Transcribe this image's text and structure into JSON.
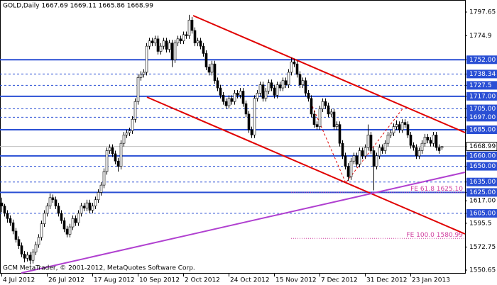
{
  "chart_data": {
    "type": "candlestick",
    "title": "GOLD,Daily  1667.69 1669.11 1665.86 1668.99",
    "footer": "GCM MetaTrader, © 2001-2012, MetaQuotes Software Corp.",
    "ylim": [
      1550.65,
      1797.65
    ],
    "yticks": [
      1797.65,
      1774.9,
      {
        "value": 1752,
        "label": "1752.00"
      },
      1738.34,
      1727.5,
      {
        "value": 1717,
        "label": "1717.00"
      },
      {
        "value": 1705,
        "label": "1705.00"
      },
      {
        "value": 1697,
        "label": "1697.00"
      },
      {
        "value": 1685,
        "label": "1685.00"
      },
      1668.99,
      {
        "value": 1660,
        "label": "1660.00"
      },
      {
        "value": 1650,
        "label": "1650.00"
      },
      {
        "value": 1635,
        "label": "1635.00"
      },
      {
        "value": 1625,
        "label": "1625.00"
      },
      {
        "value": 1617,
        "label": "1617.00"
      },
      {
        "value": 1605,
        "label": "1605.00"
      },
      1595.5,
      1572.75,
      1550.65
    ],
    "hlines_solid": [
      1752,
      1717,
      1685,
      1660,
      1625
    ],
    "hlines_dashed": [
      1738.34,
      1727.5,
      1705,
      1697,
      1650,
      1635,
      1605
    ],
    "bid": 1668.99,
    "level_color": "#2a4fd4",
    "annotations": [
      {
        "label": "FE 61.8 1625.10",
        "value": 1625.1
      },
      {
        "label": "FE 100.0 1580.99",
        "value": 1580.99
      }
    ],
    "xticks": [
      {
        "value": 0,
        "label": "4 Jul 2012"
      },
      {
        "value": 16,
        "label": "26 Jul 2012"
      },
      {
        "value": 32,
        "label": "17 Aug 2012"
      },
      {
        "value": 48,
        "label": "10 Sep 2012"
      },
      {
        "value": 64,
        "label": "2 Oct 2012"
      },
      {
        "value": 80,
        "label": "24 Oct 2012"
      },
      {
        "value": 96,
        "label": "15 Nov 2012"
      },
      {
        "value": 112,
        "label": "7 Dec 2012"
      },
      {
        "value": 128,
        "label": "31 Dec 2012"
      },
      {
        "value": 144,
        "label": "23 Jan 2013"
      }
    ],
    "candles": [
      [
        1615,
        1620,
        1606,
        1612
      ],
      [
        1612,
        1614,
        1602,
        1605
      ],
      [
        1605,
        1608,
        1596,
        1600
      ],
      [
        1600,
        1603,
        1593,
        1596
      ],
      [
        1596,
        1599,
        1585,
        1588
      ],
      [
        1588,
        1591,
        1577,
        1580
      ],
      [
        1580,
        1583,
        1571,
        1574
      ],
      [
        1574,
        1577,
        1563,
        1566
      ],
      [
        1566,
        1569,
        1558,
        1562
      ],
      [
        1562,
        1568,
        1559,
        1565
      ],
      [
        1565,
        1568,
        1556,
        1560
      ],
      [
        1560,
        1571,
        1557,
        1568
      ],
      [
        1568,
        1578,
        1565,
        1575
      ],
      [
        1575,
        1585,
        1572,
        1582
      ],
      [
        1582,
        1598,
        1579,
        1595
      ],
      [
        1595,
        1608,
        1592,
        1605
      ],
      [
        1605,
        1615,
        1602,
        1612
      ],
      [
        1612,
        1624,
        1609,
        1620
      ],
      [
        1620,
        1623,
        1615,
        1618
      ],
      [
        1618,
        1621,
        1609,
        1612
      ],
      [
        1612,
        1615,
        1602,
        1605
      ],
      [
        1605,
        1608,
        1595,
        1598
      ],
      [
        1598,
        1601,
        1587,
        1590
      ],
      [
        1590,
        1593,
        1582,
        1585
      ],
      [
        1585,
        1595,
        1582,
        1592
      ],
      [
        1592,
        1603,
        1589,
        1600
      ],
      [
        1600,
        1603,
        1593,
        1596
      ],
      [
        1596,
        1608,
        1593,
        1605
      ],
      [
        1605,
        1615,
        1602,
        1612
      ],
      [
        1612,
        1615,
        1607,
        1610
      ],
      [
        1610,
        1618,
        1607,
        1615
      ],
      [
        1615,
        1618,
        1605,
        1608
      ],
      [
        1608,
        1615,
        1605,
        1612
      ],
      [
        1612,
        1621,
        1609,
        1618
      ],
      [
        1618,
        1628,
        1615,
        1625
      ],
      [
        1625,
        1635,
        1622,
        1632
      ],
      [
        1632,
        1648,
        1629,
        1645
      ],
      [
        1645,
        1668,
        1642,
        1665
      ],
      [
        1665,
        1671,
        1662,
        1668
      ],
      [
        1668,
        1671,
        1659,
        1662
      ],
      [
        1662,
        1665,
        1652,
        1655
      ],
      [
        1655,
        1658,
        1645,
        1650
      ],
      [
        1650,
        1675,
        1647,
        1672
      ],
      [
        1672,
        1683,
        1669,
        1680
      ],
      [
        1680,
        1685,
        1677,
        1682
      ],
      [
        1682,
        1687,
        1679,
        1684
      ],
      [
        1684,
        1698,
        1681,
        1695
      ],
      [
        1695,
        1715,
        1692,
        1712
      ],
      [
        1712,
        1738,
        1709,
        1735
      ],
      [
        1735,
        1741,
        1732,
        1738
      ],
      [
        1738,
        1743,
        1735,
        1740
      ],
      [
        1740,
        1768,
        1737,
        1765
      ],
      [
        1765,
        1773,
        1762,
        1770
      ],
      [
        1770,
        1773,
        1765,
        1768
      ],
      [
        1768,
        1775,
        1765,
        1772
      ],
      [
        1772,
        1775,
        1757,
        1760
      ],
      [
        1760,
        1768,
        1757,
        1765
      ],
      [
        1765,
        1773,
        1762,
        1770
      ],
      [
        1770,
        1773,
        1759,
        1762
      ],
      [
        1762,
        1771,
        1759,
        1768
      ],
      [
        1768,
        1771,
        1745,
        1752
      ],
      [
        1752,
        1771,
        1749,
        1768
      ],
      [
        1768,
        1775,
        1765,
        1772
      ],
      [
        1772,
        1775,
        1767,
        1770
      ],
      [
        1770,
        1779,
        1767,
        1776
      ],
      [
        1776,
        1779,
        1772,
        1775
      ],
      [
        1775,
        1795,
        1772,
        1790
      ],
      [
        1790,
        1793,
        1777,
        1780
      ],
      [
        1780,
        1783,
        1765,
        1768
      ],
      [
        1768,
        1773,
        1765,
        1770
      ],
      [
        1770,
        1773,
        1762,
        1765
      ],
      [
        1765,
        1768,
        1755,
        1758
      ],
      [
        1758,
        1761,
        1742,
        1745
      ],
      [
        1745,
        1748,
        1737,
        1740
      ],
      [
        1740,
        1751,
        1737,
        1748
      ],
      [
        1748,
        1751,
        1729,
        1732
      ],
      [
        1732,
        1735,
        1722,
        1725
      ],
      [
        1725,
        1728,
        1715,
        1718
      ],
      [
        1718,
        1721,
        1709,
        1712
      ],
      [
        1712,
        1715,
        1705,
        1708
      ],
      [
        1708,
        1718,
        1705,
        1715
      ],
      [
        1715,
        1718,
        1709,
        1712
      ],
      [
        1712,
        1723,
        1709,
        1720
      ],
      [
        1720,
        1723,
        1715,
        1718
      ],
      [
        1718,
        1725,
        1715,
        1722
      ],
      [
        1722,
        1725,
        1707,
        1710
      ],
      [
        1710,
        1713,
        1697,
        1700
      ],
      [
        1700,
        1703,
        1682,
        1685
      ],
      [
        1685,
        1688,
        1677,
        1680
      ],
      [
        1680,
        1718,
        1677,
        1715
      ],
      [
        1715,
        1723,
        1712,
        1720
      ],
      [
        1720,
        1731,
        1717,
        1728
      ],
      [
        1728,
        1731,
        1712,
        1715
      ],
      [
        1715,
        1725,
        1712,
        1722
      ],
      [
        1722,
        1733,
        1719,
        1730
      ],
      [
        1730,
        1733,
        1722,
        1725
      ],
      [
        1725,
        1728,
        1715,
        1718
      ],
      [
        1718,
        1731,
        1715,
        1728
      ],
      [
        1728,
        1731,
        1722,
        1725
      ],
      [
        1725,
        1735,
        1722,
        1732
      ],
      [
        1732,
        1735,
        1725,
        1728
      ],
      [
        1728,
        1743,
        1725,
        1740
      ],
      [
        1740,
        1754,
        1737,
        1750
      ],
      [
        1750,
        1753,
        1745,
        1748
      ],
      [
        1748,
        1751,
        1735,
        1738
      ],
      [
        1738,
        1741,
        1725,
        1728
      ],
      [
        1728,
        1735,
        1725,
        1732
      ],
      [
        1732,
        1735,
        1717,
        1720
      ],
      [
        1720,
        1723,
        1712,
        1715
      ],
      [
        1715,
        1718,
        1697,
        1700
      ],
      [
        1700,
        1703,
        1687,
        1690
      ],
      [
        1690,
        1693,
        1685,
        1688
      ],
      [
        1688,
        1708,
        1685,
        1705
      ],
      [
        1705,
        1715,
        1702,
        1712
      ],
      [
        1712,
        1715,
        1705,
        1708
      ],
      [
        1708,
        1711,
        1697,
        1700
      ],
      [
        1700,
        1705,
        1697,
        1702
      ],
      [
        1702,
        1705,
        1685,
        1688
      ],
      [
        1688,
        1693,
        1685,
        1690
      ],
      [
        1690,
        1693,
        1669,
        1672
      ],
      [
        1672,
        1675,
        1657,
        1660
      ],
      [
        1660,
        1663,
        1647,
        1650
      ],
      [
        1650,
        1653,
        1636,
        1640
      ],
      [
        1640,
        1658,
        1637,
        1655
      ],
      [
        1655,
        1663,
        1652,
        1660
      ],
      [
        1660,
        1663,
        1649,
        1652
      ],
      [
        1652,
        1668,
        1649,
        1665
      ],
      [
        1665,
        1668,
        1657,
        1660
      ],
      [
        1660,
        1671,
        1657,
        1668
      ],
      [
        1668,
        1690,
        1665,
        1680
      ],
      [
        1680,
        1683,
        1662,
        1665
      ],
      [
        1665,
        1668,
        1627,
        1650
      ],
      [
        1650,
        1663,
        1647,
        1660
      ],
      [
        1660,
        1671,
        1657,
        1668
      ],
      [
        1668,
        1671,
        1662,
        1665
      ],
      [
        1665,
        1675,
        1662,
        1672
      ],
      [
        1672,
        1683,
        1669,
        1680
      ],
      [
        1680,
        1685,
        1677,
        1682
      ],
      [
        1682,
        1691,
        1679,
        1688
      ],
      [
        1688,
        1694,
        1685,
        1690
      ],
      [
        1690,
        1693,
        1682,
        1685
      ],
      [
        1685,
        1695,
        1682,
        1692
      ],
      [
        1692,
        1695,
        1687,
        1690
      ],
      [
        1690,
        1693,
        1677,
        1680
      ],
      [
        1680,
        1683,
        1667,
        1670
      ],
      [
        1670,
        1673,
        1665,
        1668
      ],
      [
        1668,
        1671,
        1657,
        1660
      ],
      [
        1660,
        1668,
        1657,
        1665
      ],
      [
        1665,
        1675,
        1662,
        1672
      ],
      [
        1672,
        1681,
        1669,
        1678
      ],
      [
        1678,
        1681,
        1672,
        1675
      ],
      [
        1675,
        1678,
        1669,
        1672
      ],
      [
        1672,
        1683,
        1669,
        1680
      ],
      [
        1680,
        1683,
        1665,
        1668
      ],
      [
        1668,
        1671,
        1662,
        1665
      ],
      [
        1667.69,
        1669.11,
        1665.86,
        1668.99
      ]
    ]
  }
}
